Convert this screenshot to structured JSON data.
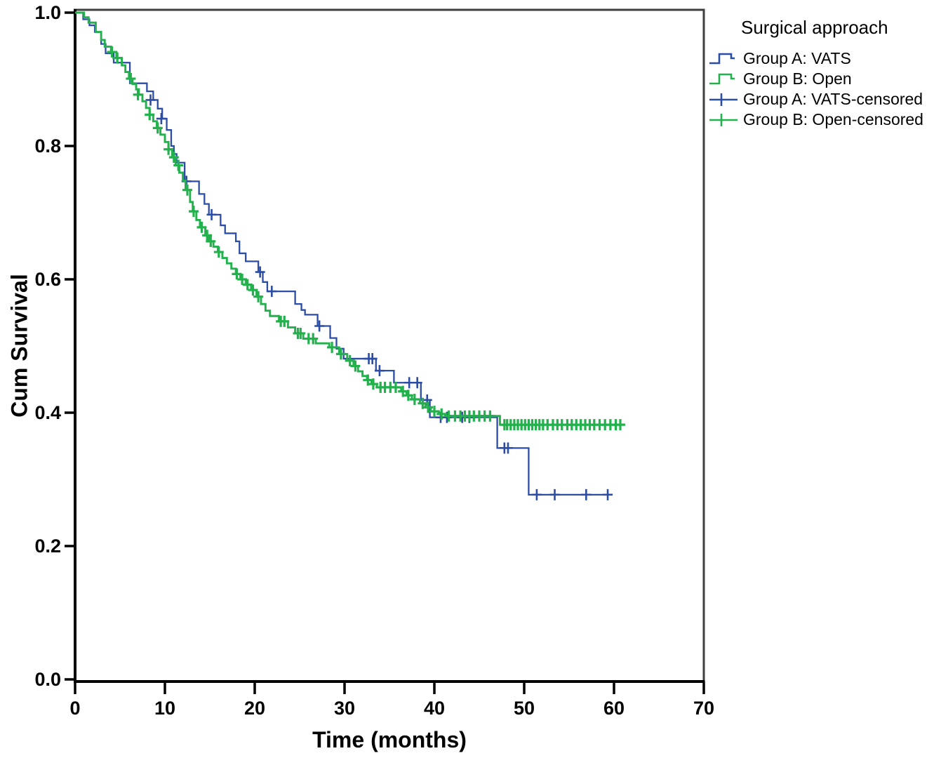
{
  "figure": {
    "y_axis": {
      "label": "Cum Survival",
      "tick_labels": [
        "1.0",
        "0.8",
        "0.6",
        "0.4",
        "0.2",
        "0.0"
      ],
      "tick_values": [
        1.0,
        0.8,
        0.6,
        0.4,
        0.2,
        0.0
      ]
    },
    "x_axis": {
      "label": "Time (months)",
      "tick_labels": [
        "0",
        "10",
        "20",
        "30",
        "40",
        "50",
        "60",
        "70"
      ],
      "tick_values": [
        0,
        10,
        20,
        30,
        40,
        50,
        60,
        70
      ]
    },
    "legend": {
      "title": "Surgical approach",
      "entries": [
        {
          "label": "Group A: VATS",
          "glyph": "step",
          "color": "#2c4da6"
        },
        {
          "label": "Group B: Open",
          "glyph": "step",
          "color": "#22b14c"
        },
        {
          "label": "Group A: VATS-censored",
          "glyph": "plus",
          "color": "#2c4da6"
        },
        {
          "label": "Group B: Open-censored",
          "glyph": "plus",
          "color": "#22b14c"
        }
      ]
    },
    "colors": {
      "vats": "#2c4da6",
      "open": "#22b14c",
      "frame": "#3f3f3f",
      "axis": "#000000"
    }
  },
  "chart_data": {
    "type": "line",
    "subtype": "kaplan-meier-step",
    "xlabel": "Time (months)",
    "ylabel": "Cum Survival",
    "xlim": [
      0,
      70
    ],
    "ylim": [
      0.0,
      1.0
    ],
    "grid": false,
    "legend_position": "top-right-outside",
    "legend_title": "Surgical approach",
    "series": [
      {
        "name": "Group A: VATS",
        "color": "#2c4da6",
        "end_time": 59.8,
        "steps": [
          [
            0,
            1.0
          ],
          [
            0.9,
            0.99
          ],
          [
            1.6,
            0.981
          ],
          [
            2.2,
            0.971
          ],
          [
            2.9,
            0.953
          ],
          [
            3.4,
            0.939
          ],
          [
            4.3,
            0.925
          ],
          [
            6.1,
            0.894
          ],
          [
            8.0,
            0.882
          ],
          [
            8.7,
            0.869
          ],
          [
            9.2,
            0.856
          ],
          [
            9.7,
            0.841
          ],
          [
            10.2,
            0.824
          ],
          [
            10.7,
            0.8
          ],
          [
            11.0,
            0.788
          ],
          [
            11.3,
            0.775
          ],
          [
            12.2,
            0.747
          ],
          [
            13.8,
            0.728
          ],
          [
            14.4,
            0.713
          ],
          [
            14.9,
            0.697
          ],
          [
            16.2,
            0.681
          ],
          [
            16.7,
            0.669
          ],
          [
            17.9,
            0.657
          ],
          [
            18.3,
            0.639
          ],
          [
            19.0,
            0.627
          ],
          [
            20.4,
            0.611
          ],
          [
            20.9,
            0.596
          ],
          [
            21.4,
            0.582
          ],
          [
            24.5,
            0.563
          ],
          [
            25.2,
            0.554
          ],
          [
            25.6,
            0.547
          ],
          [
            27.0,
            0.53
          ],
          [
            28.4,
            0.512
          ],
          [
            29.1,
            0.496
          ],
          [
            29.9,
            0.481
          ],
          [
            33.5,
            0.463
          ],
          [
            35.5,
            0.445
          ],
          [
            38.5,
            0.419
          ],
          [
            39.5,
            0.393
          ],
          [
            47.0,
            0.347
          ],
          [
            50.5,
            0.277
          ]
        ],
        "censored": [
          [
            8.4,
            0.869
          ],
          [
            9.6,
            0.841
          ],
          [
            12.4,
            0.747
          ],
          [
            15.2,
            0.697
          ],
          [
            20.6,
            0.611
          ],
          [
            21.9,
            0.582
          ],
          [
            27.2,
            0.53
          ],
          [
            32.7,
            0.481
          ],
          [
            33.1,
            0.481
          ],
          [
            33.9,
            0.463
          ],
          [
            37.2,
            0.445
          ],
          [
            38.1,
            0.445
          ],
          [
            39.2,
            0.419
          ],
          [
            40.7,
            0.393
          ],
          [
            41.4,
            0.393
          ],
          [
            43.1,
            0.393
          ],
          [
            43.9,
            0.393
          ],
          [
            47.8,
            0.347
          ],
          [
            48.2,
            0.347
          ],
          [
            51.4,
            0.277
          ],
          [
            53.4,
            0.277
          ],
          [
            56.9,
            0.277
          ],
          [
            59.3,
            0.277
          ]
        ]
      },
      {
        "name": "Group B: Open",
        "color": "#22b14c",
        "end_time": 61.0,
        "steps": [
          [
            0,
            1.0
          ],
          [
            1.0,
            0.993
          ],
          [
            1.5,
            0.985
          ],
          [
            2.3,
            0.971
          ],
          [
            2.9,
            0.959
          ],
          [
            3.3,
            0.949
          ],
          [
            4.0,
            0.941
          ],
          [
            4.6,
            0.932
          ],
          [
            5.2,
            0.921
          ],
          [
            5.6,
            0.911
          ],
          [
            6.0,
            0.901
          ],
          [
            6.4,
            0.893
          ],
          [
            6.8,
            0.885
          ],
          [
            7.1,
            0.877
          ],
          [
            7.5,
            0.867
          ],
          [
            7.9,
            0.857
          ],
          [
            8.3,
            0.847
          ],
          [
            8.7,
            0.837
          ],
          [
            9.1,
            0.827
          ],
          [
            9.5,
            0.817
          ],
          [
            10.0,
            0.806
          ],
          [
            10.4,
            0.795
          ],
          [
            10.8,
            0.783
          ],
          [
            11.2,
            0.771
          ],
          [
            11.6,
            0.76
          ],
          [
            12.0,
            0.748
          ],
          [
            12.3,
            0.734
          ],
          [
            12.8,
            0.716
          ],
          [
            13.1,
            0.702
          ],
          [
            13.5,
            0.689
          ],
          [
            13.9,
            0.678
          ],
          [
            14.5,
            0.666
          ],
          [
            14.9,
            0.657
          ],
          [
            15.4,
            0.649
          ],
          [
            15.9,
            0.641
          ],
          [
            16.4,
            0.632
          ],
          [
            16.9,
            0.624
          ],
          [
            17.4,
            0.616
          ],
          [
            17.9,
            0.608
          ],
          [
            18.4,
            0.6
          ],
          [
            19.0,
            0.592
          ],
          [
            19.6,
            0.584
          ],
          [
            20.2,
            0.574
          ],
          [
            20.7,
            0.563
          ],
          [
            21.2,
            0.553
          ],
          [
            21.7,
            0.545
          ],
          [
            22.7,
            0.537
          ],
          [
            23.7,
            0.528
          ],
          [
            24.5,
            0.519
          ],
          [
            25.4,
            0.511
          ],
          [
            26.8,
            0.504
          ],
          [
            28.3,
            0.498
          ],
          [
            29.4,
            0.488
          ],
          [
            30.3,
            0.478
          ],
          [
            31.0,
            0.47
          ],
          [
            31.5,
            0.462
          ],
          [
            32.0,
            0.455
          ],
          [
            32.5,
            0.449
          ],
          [
            33.0,
            0.443
          ],
          [
            33.6,
            0.438
          ],
          [
            36.3,
            0.432
          ],
          [
            36.9,
            0.426
          ],
          [
            37.5,
            0.42
          ],
          [
            38.4,
            0.414
          ],
          [
            39.0,
            0.408
          ],
          [
            39.6,
            0.402
          ],
          [
            40.5,
            0.398
          ],
          [
            41.3,
            0.395
          ],
          [
            47.3,
            0.382
          ]
        ],
        "censored": [
          [
            4.1,
            0.941
          ],
          [
            4.7,
            0.932
          ],
          [
            6.2,
            0.901
          ],
          [
            7.0,
            0.877
          ],
          [
            8.3,
            0.847
          ],
          [
            9.2,
            0.827
          ],
          [
            10.4,
            0.795
          ],
          [
            11.0,
            0.783
          ],
          [
            11.5,
            0.771
          ],
          [
            12.5,
            0.734
          ],
          [
            13.2,
            0.702
          ],
          [
            14.1,
            0.678
          ],
          [
            14.7,
            0.666
          ],
          [
            15.1,
            0.657
          ],
          [
            16.0,
            0.641
          ],
          [
            18.0,
            0.608
          ],
          [
            18.6,
            0.6
          ],
          [
            19.2,
            0.592
          ],
          [
            19.8,
            0.584
          ],
          [
            20.4,
            0.574
          ],
          [
            22.9,
            0.537
          ],
          [
            23.3,
            0.537
          ],
          [
            24.8,
            0.519
          ],
          [
            25.1,
            0.519
          ],
          [
            26.0,
            0.511
          ],
          [
            26.5,
            0.511
          ],
          [
            28.6,
            0.498
          ],
          [
            29.6,
            0.488
          ],
          [
            30.6,
            0.478
          ],
          [
            31.2,
            0.47
          ],
          [
            32.6,
            0.449
          ],
          [
            33.2,
            0.443
          ],
          [
            34.0,
            0.438
          ],
          [
            34.5,
            0.438
          ],
          [
            35.1,
            0.438
          ],
          [
            35.7,
            0.438
          ],
          [
            36.5,
            0.432
          ],
          [
            37.1,
            0.426
          ],
          [
            37.8,
            0.42
          ],
          [
            38.7,
            0.414
          ],
          [
            39.3,
            0.408
          ],
          [
            40.0,
            0.402
          ],
          [
            40.8,
            0.398
          ],
          [
            41.6,
            0.395
          ],
          [
            42.3,
            0.395
          ],
          [
            42.9,
            0.395
          ],
          [
            43.4,
            0.395
          ],
          [
            43.9,
            0.395
          ],
          [
            44.4,
            0.395
          ],
          [
            45.0,
            0.395
          ],
          [
            45.6,
            0.395
          ],
          [
            46.2,
            0.395
          ],
          [
            47.8,
            0.382
          ],
          [
            48.1,
            0.382
          ],
          [
            48.5,
            0.382
          ],
          [
            48.9,
            0.382
          ],
          [
            49.3,
            0.382
          ],
          [
            49.7,
            0.382
          ],
          [
            50.1,
            0.382
          ],
          [
            50.5,
            0.382
          ],
          [
            50.9,
            0.382
          ],
          [
            51.3,
            0.382
          ],
          [
            51.7,
            0.382
          ],
          [
            52.1,
            0.382
          ],
          [
            52.6,
            0.382
          ],
          [
            53.2,
            0.382
          ],
          [
            53.7,
            0.382
          ],
          [
            54.2,
            0.382
          ],
          [
            54.8,
            0.382
          ],
          [
            55.3,
            0.382
          ],
          [
            55.8,
            0.382
          ],
          [
            56.3,
            0.382
          ],
          [
            56.8,
            0.382
          ],
          [
            57.3,
            0.382
          ],
          [
            57.8,
            0.382
          ],
          [
            58.4,
            0.382
          ],
          [
            59.0,
            0.382
          ],
          [
            59.6,
            0.382
          ],
          [
            60.2,
            0.382
          ],
          [
            60.7,
            0.382
          ]
        ]
      }
    ]
  }
}
